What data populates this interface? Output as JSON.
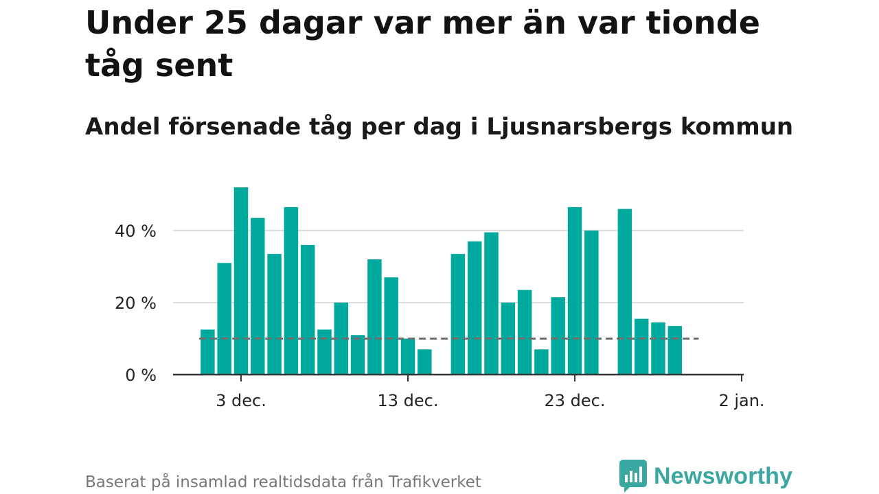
{
  "title": "Under 25 dagar var mer än var tionde tåg sent",
  "subtitle": "Andel försenade tåg per dag i Ljusnarsbergs kommun",
  "source": "Baserat på insamlad realtidsdata från Trafikverket",
  "brand": {
    "name": "Newsworthy",
    "icon": "newsworthy-logo-icon",
    "color": "#3aa7a0"
  },
  "chart_data": {
    "type": "bar",
    "x_unit": "date",
    "x": [
      "2023-12-01",
      "2023-12-02",
      "2023-12-03",
      "2023-12-04",
      "2023-12-05",
      "2023-12-06",
      "2023-12-07",
      "2023-12-08",
      "2023-12-09",
      "2023-12-10",
      "2023-12-11",
      "2023-12-12",
      "2023-12-13",
      "2023-12-14",
      "2023-12-15",
      "2023-12-16",
      "2023-12-17",
      "2023-12-18",
      "2023-12-19",
      "2023-12-20",
      "2023-12-21",
      "2023-12-22",
      "2023-12-23",
      "2023-12-24",
      "2023-12-25",
      "2023-12-26",
      "2023-12-27",
      "2023-12-28",
      "2023-12-29",
      "2023-12-30"
    ],
    "values": [
      12.5,
      31,
      52,
      43.5,
      33.5,
      46.5,
      36,
      12.5,
      20,
      11,
      32,
      27,
      10,
      7,
      null,
      33.5,
      37,
      39.5,
      20,
      23.5,
      7,
      21.5,
      46.5,
      40,
      null,
      46,
      15.5,
      14.5,
      13.5,
      null
    ],
    "reference_line": 10,
    "ylim": [
      0,
      55
    ],
    "yticks": [
      0,
      20,
      40
    ],
    "ytick_labels": [
      "0 %",
      "20 %",
      "40 %"
    ],
    "xticks": [
      "2023-12-03",
      "2023-12-13",
      "2023-12-23",
      "2024-01-02"
    ],
    "xtick_labels": [
      "3 dec.",
      "13 dec.",
      "23 dec.",
      "2 jan."
    ],
    "bar_color": "#00a99d",
    "reference_color": "#707070",
    "grid": true,
    "xlabel": "",
    "ylabel": ""
  }
}
